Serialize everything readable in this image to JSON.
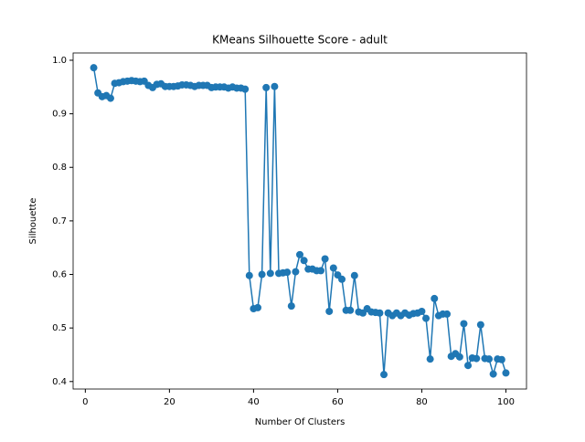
{
  "chart_data": {
    "type": "line",
    "title": "KMeans Silhouette Score - adult",
    "xlabel": "Number Of Clusters",
    "ylabel": "Silhouette",
    "x": [
      2,
      3,
      4,
      5,
      6,
      7,
      8,
      9,
      10,
      11,
      12,
      13,
      14,
      15,
      16,
      17,
      18,
      19,
      20,
      21,
      22,
      23,
      24,
      25,
      26,
      27,
      28,
      29,
      30,
      31,
      32,
      33,
      34,
      35,
      36,
      37,
      38,
      39,
      40,
      41,
      42,
      43,
      44,
      45,
      46,
      47,
      48,
      49,
      50,
      51,
      52,
      53,
      54,
      55,
      56,
      57,
      58,
      59,
      60,
      61,
      62,
      63,
      64,
      65,
      66,
      67,
      68,
      69,
      70,
      71,
      72,
      73,
      74,
      75,
      76,
      77,
      78,
      79,
      80,
      81,
      82,
      83,
      84,
      85,
      86,
      87,
      88,
      89,
      90,
      91,
      92,
      93,
      94,
      95,
      96,
      97,
      98,
      99,
      100
    ],
    "series": [
      {
        "name": "Silhouette",
        "color": "#1f77b4",
        "values": [
          0.986,
          0.939,
          0.932,
          0.934,
          0.929,
          0.957,
          0.958,
          0.96,
          0.961,
          0.962,
          0.961,
          0.96,
          0.961,
          0.953,
          0.949,
          0.955,
          0.956,
          0.951,
          0.951,
          0.951,
          0.952,
          0.954,
          0.954,
          0.953,
          0.951,
          0.953,
          0.953,
          0.953,
          0.949,
          0.95,
          0.95,
          0.95,
          0.948,
          0.95,
          0.948,
          0.948,
          0.946,
          0.598,
          0.536,
          0.538,
          0.6,
          0.949,
          0.602,
          0.951,
          0.602,
          0.603,
          0.604,
          0.541,
          0.605,
          0.637,
          0.626,
          0.61,
          0.61,
          0.607,
          0.607,
          0.629,
          0.531,
          0.612,
          0.599,
          0.591,
          0.533,
          0.533,
          0.598,
          0.53,
          0.528,
          0.536,
          0.53,
          0.529,
          0.528,
          0.413,
          0.528,
          0.523,
          0.528,
          0.523,
          0.528,
          0.524,
          0.527,
          0.528,
          0.531,
          0.518,
          0.442,
          0.555,
          0.523,
          0.526,
          0.526,
          0.447,
          0.452,
          0.446,
          0.508,
          0.43,
          0.444,
          0.443,
          0.506,
          0.443,
          0.442,
          0.414,
          0.442,
          0.441,
          0.416
        ]
      }
    ],
    "xlim": [
      -2.9,
      104.9
    ],
    "ylim": [
      0.386,
      1.0136
    ],
    "xticks": [
      0,
      20,
      40,
      60,
      80,
      100
    ],
    "yticks": [
      0.4,
      0.5,
      0.6,
      0.7,
      0.8,
      0.9,
      {
        "value": 1,
        "label": "1.0"
      }
    ]
  }
}
